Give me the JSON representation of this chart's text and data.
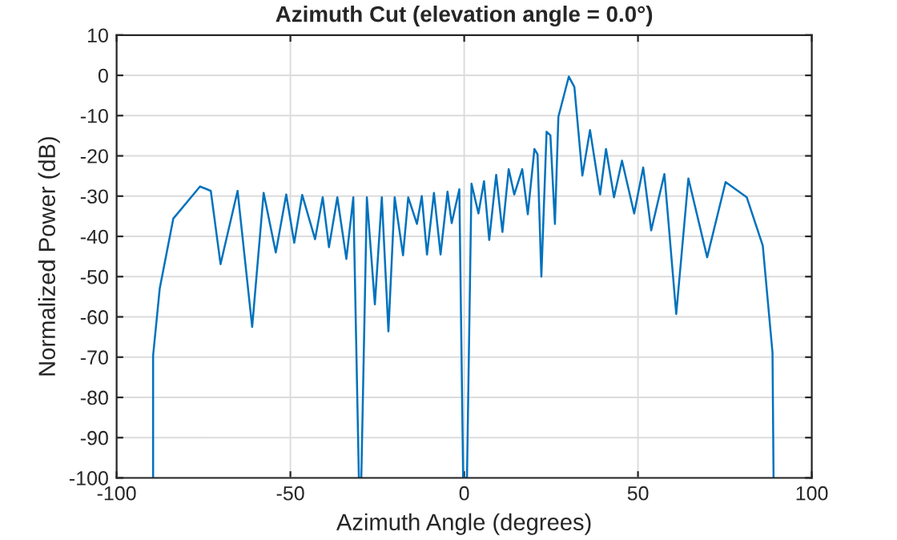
{
  "chart_data": {
    "type": "line",
    "title": "Azimuth Cut (elevation angle = 0.0°)",
    "xlabel": "Azimuth Angle (degrees)",
    "ylabel": "Normalized Power (dB)",
    "x": [
      -89.5,
      -89.5,
      -87.6,
      -83.7,
      -76,
      -72.9,
      -70.1,
      -65.2,
      -61,
      -57.7,
      -54.2,
      -51.2,
      -48.9,
      -46.6,
      -42.9,
      -40.7,
      -38.9,
      -36.5,
      -33.9,
      -31.9,
      -30.3,
      -29.6,
      -28,
      -25.7,
      -23.7,
      -21.8,
      -20,
      -17.6,
      -16.1,
      -13.6,
      -12.2,
      -10.7,
      -8.7,
      -6.8,
      -4.8,
      -3.6,
      -1.4,
      -0.3,
      0.8,
      2.1,
      4.1,
      5.7,
      7.2,
      9.2,
      11,
      12.8,
      14.4,
      16.7,
      18.3,
      20.2,
      21.1,
      22.2,
      23.7,
      24.8,
      26.1,
      27.1,
      30.1,
      31.7,
      34,
      36.2,
      39.1,
      40.8,
      43.1,
      45.4,
      48.9,
      51.5,
      53.8,
      57.6,
      61,
      64.5,
      69.9,
      75.2,
      81.3,
      85.9,
      88.7,
      89
    ],
    "series": [
      {
        "color": "#0072bd",
        "values": [
          -100,
          -69.6,
          -53,
          -35.6,
          -27.6,
          -28.7,
          -46.9,
          -28.7,
          -62.5,
          -29.2,
          -44,
          -29.6,
          -41.6,
          -29.7,
          -40.7,
          -30.3,
          -42.7,
          -30.3,
          -45.6,
          -30.3,
          -100,
          -100,
          -30.3,
          -56.9,
          -30.3,
          -63.6,
          -30.3,
          -44.7,
          -30.3,
          -36.9,
          -30,
          -44.5,
          -29.2,
          -44.5,
          -28.9,
          -36.7,
          -28.3,
          -100,
          -100,
          -26.9,
          -34.3,
          -26.3,
          -40.9,
          -24.7,
          -38.9,
          -23.3,
          -29.6,
          -23.3,
          -34.5,
          -18.3,
          -19.6,
          -50,
          -14,
          -14.9,
          -36.9,
          -10.3,
          -0.3,
          -2.9,
          -24.9,
          -13.6,
          -29.6,
          -18.3,
          -30.3,
          -21.2,
          -34.3,
          -22.9,
          -38.5,
          -24.5,
          -59.3,
          -25.6,
          -45.2,
          -26.5,
          -30.3,
          -42.3,
          -68.9,
          -100
        ]
      }
    ],
    "xlim": [
      -100,
      100
    ],
    "xticks": [
      -100,
      -50,
      0,
      50,
      100
    ],
    "ylim": [
      -100,
      10
    ],
    "yticks": [
      -100,
      -90,
      -80,
      -70,
      -60,
      -50,
      -40,
      -30,
      -20,
      -10,
      0,
      10
    ],
    "grid": true,
    "line_style": "solid"
  }
}
